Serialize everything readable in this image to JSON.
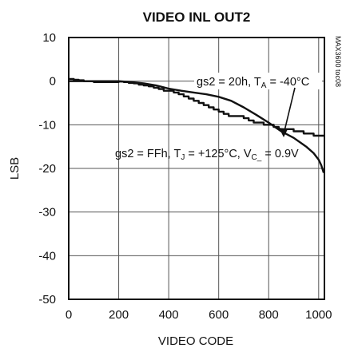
{
  "chart_data": {
    "type": "line",
    "title": "VIDEO INL OUT2",
    "xlabel": "VIDEO CODE",
    "ylabel": "LSB",
    "xlim": [
      0,
      1023
    ],
    "ylim": [
      -50,
      10
    ],
    "xticks": [
      0,
      200,
      400,
      600,
      800,
      1000
    ],
    "yticks": [
      10,
      0,
      -10,
      -20,
      -30,
      -40,
      -50
    ],
    "grid": true,
    "legend": "none",
    "side_label": "MAX3600 toc08",
    "series": [
      {
        "style": "stepped",
        "x": [
          0,
          10,
          20,
          40,
          60,
          80,
          100,
          120,
          140,
          160,
          180,
          200,
          220,
          240,
          260,
          280,
          300,
          320,
          340,
          360,
          380,
          400,
          420,
          440,
          460,
          480,
          500,
          520,
          540,
          560,
          580,
          600,
          620,
          640,
          660,
          680,
          700,
          720,
          740,
          760,
          780,
          800,
          820,
          840,
          860,
          880,
          900,
          920,
          940,
          960,
          980,
          1000,
          1020
        ],
        "y": [
          0.5,
          0.5,
          0.3,
          0.2,
          0.0,
          0.0,
          -0.2,
          -0.2,
          -0.2,
          -0.2,
          -0.2,
          -0.1,
          -0.2,
          -0.4,
          -0.5,
          -0.8,
          -1.0,
          -1.2,
          -1.5,
          -1.8,
          -2.2,
          -2.2,
          -2.6,
          -3.0,
          -3.5,
          -4.0,
          -4.5,
          -5.0,
          -5.5,
          -6.0,
          -6.5,
          -7.0,
          -7.5,
          -8.0,
          -8.0,
          -8.0,
          -8.5,
          -9.0,
          -9.5,
          -9.5,
          -10.0,
          -10.0,
          -10.5,
          -11.0,
          -11.0,
          -11.0,
          -11.5,
          -11.5,
          -12.0,
          -12.0,
          -12.5,
          -12.5,
          -12.7
        ]
      },
      {
        "style": "smooth",
        "x": [
          0,
          50,
          100,
          150,
          200,
          250,
          300,
          350,
          400,
          450,
          500,
          550,
          600,
          650,
          700,
          750,
          800,
          850,
          900,
          950,
          980,
          1000,
          1010,
          1020
        ],
        "y": [
          0,
          0,
          0,
          0,
          0,
          -0.2,
          -0.5,
          -1.0,
          -1.7,
          -2.2,
          -2.6,
          -3.0,
          -3.6,
          -4.5,
          -6.0,
          -7.7,
          -9.5,
          -11.5,
          -13.0,
          -15.0,
          -16.5,
          -18.0,
          -19.2,
          -21.0
        ]
      }
    ],
    "annotations": [
      {
        "id": "gs2-20h",
        "parts": [
          {
            "t": "gs2 = 20h, T"
          },
          {
            "t": "A",
            "sub": true
          },
          {
            "t": " = -40°C"
          }
        ]
      },
      {
        "id": "gs2-ffh",
        "parts": [
          {
            "t": "gs2 = FFh, T"
          },
          {
            "t": "J",
            "sub": true
          },
          {
            "t": " = +125°C, V"
          },
          {
            "t": "C_",
            "sub": true
          },
          {
            "t": " = 0.9V"
          }
        ]
      }
    ]
  }
}
